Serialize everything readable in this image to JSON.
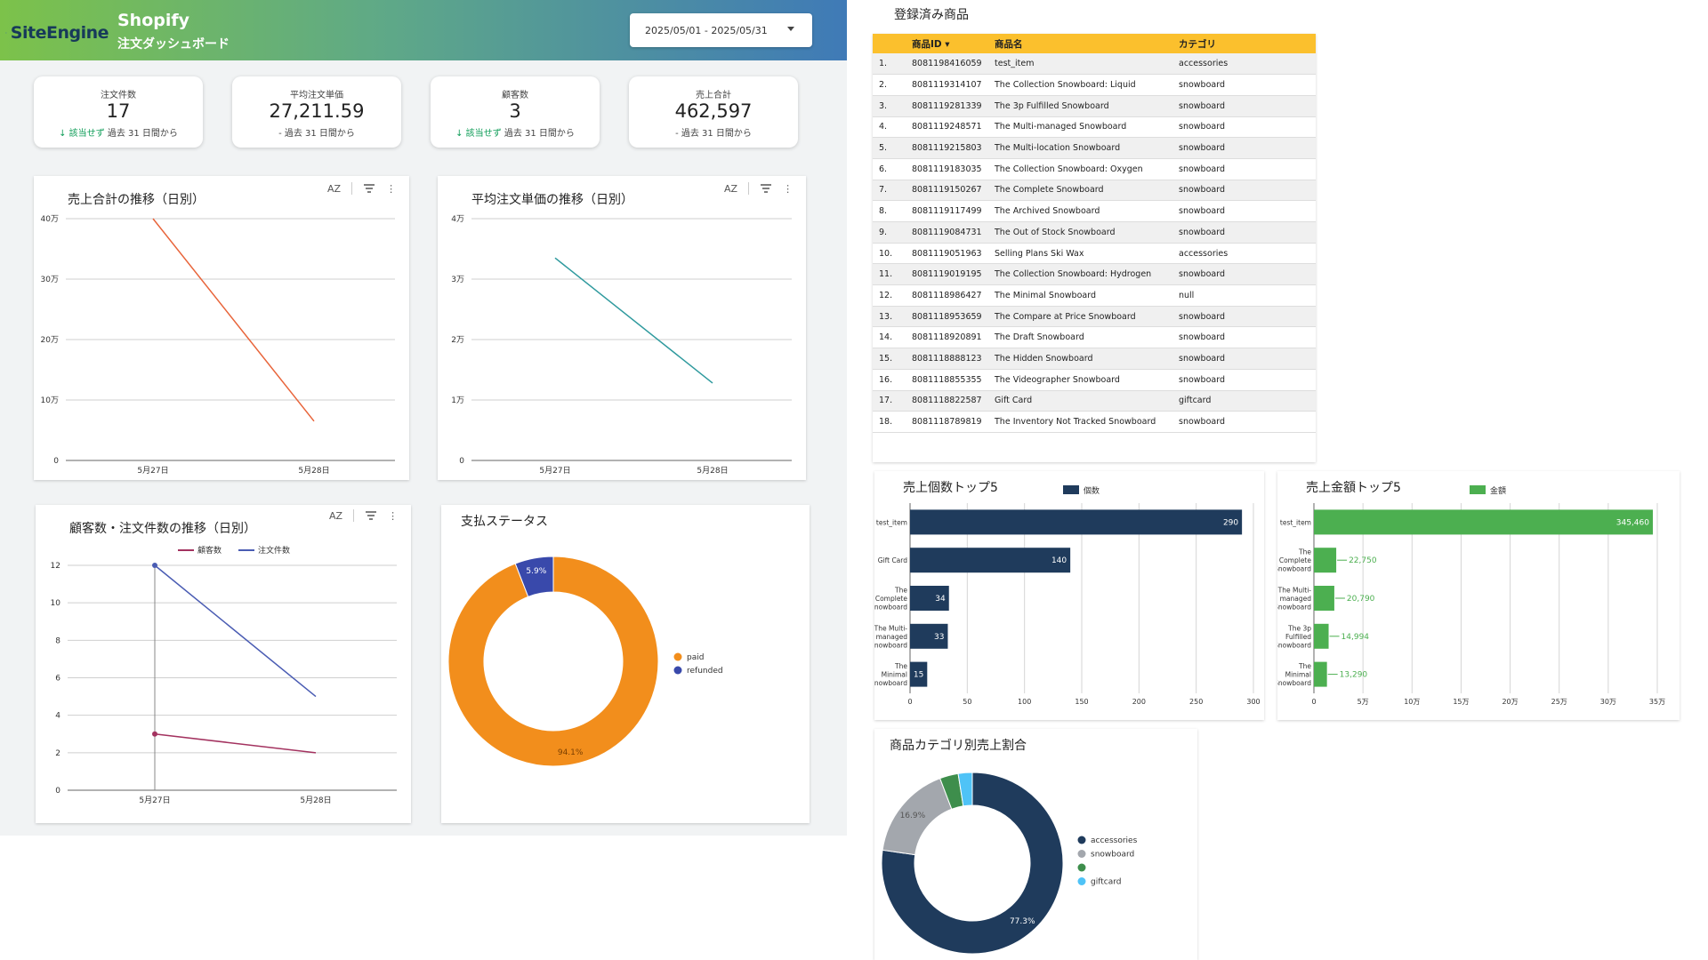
{
  "header": {
    "logo_text": "SiteEngine",
    "brand": "Shopify",
    "subtitle": "注文ダッシュボード",
    "date_range": "2025/05/01 - 2025/05/31"
  },
  "kpis": [
    {
      "label": "注文件数",
      "value": "17",
      "compare_flag": "該当せず",
      "compare_text": " 過去 31 日間から"
    },
    {
      "label": "平均注文単価",
      "value": "27,211.59",
      "compare_flag": "",
      "compare_text": "- 過去 31 日間から"
    },
    {
      "label": "顧客数",
      "value": "3",
      "compare_flag": "該当せず",
      "compare_text": " 過去 31 日間から"
    },
    {
      "label": "売上合計",
      "value": "462,597",
      "compare_flag": "",
      "compare_text": "- 過去 31 日間から"
    }
  ],
  "toolbar_icons": [
    "sort-az-icon",
    "filter-icon",
    "more-vert-icon"
  ],
  "toolbar": {
    "sort_label": "AZ",
    "more_label": "⋮"
  },
  "products_table": {
    "title": "登録済み商品",
    "headers": [
      "",
      "商品ID ▾",
      "商品名",
      "カテゴリ"
    ],
    "rows": [
      [
        "1.",
        "8081198416059",
        "test_item",
        "accessories"
      ],
      [
        "2.",
        "8081119314107",
        "The Collection Snowboard: Liquid",
        "snowboard"
      ],
      [
        "3.",
        "8081119281339",
        "The 3p Fulfilled Snowboard",
        "snowboard"
      ],
      [
        "4.",
        "8081119248571",
        "The Multi-managed Snowboard",
        "snowboard"
      ],
      [
        "5.",
        "8081119215803",
        "The Multi-location Snowboard",
        "snowboard"
      ],
      [
        "6.",
        "8081119183035",
        "The Collection Snowboard: Oxygen",
        "snowboard"
      ],
      [
        "7.",
        "8081119150267",
        "The Complete Snowboard",
        "snowboard"
      ],
      [
        "8.",
        "8081119117499",
        "The Archived Snowboard",
        "snowboard"
      ],
      [
        "9.",
        "8081119084731",
        "The Out of Stock Snowboard",
        "snowboard"
      ],
      [
        "10.",
        "8081119051963",
        "Selling Plans Ski Wax",
        "accessories"
      ],
      [
        "11.",
        "8081119019195",
        "The Collection Snowboard: Hydrogen",
        "snowboard"
      ],
      [
        "12.",
        "8081118986427",
        "The Minimal Snowboard",
        "null"
      ],
      [
        "13.",
        "8081118953659",
        "The Compare at Price Snowboard",
        "snowboard"
      ],
      [
        "14.",
        "8081118920891",
        "The Draft Snowboard",
        "snowboard"
      ],
      [
        "15.",
        "8081118888123",
        "The Hidden Snowboard",
        "snowboard"
      ],
      [
        "16.",
        "8081118855355",
        "The Videographer Snowboard",
        "snowboard"
      ],
      [
        "17.",
        "8081118822587",
        "Gift Card",
        "giftcard"
      ],
      [
        "18.",
        "8081118789819",
        "The Inventory Not Tracked Snowboard",
        "snowboard"
      ]
    ]
  },
  "chart_data": [
    {
      "id": "sales",
      "type": "line",
      "title": "売上合計の推移（日別）",
      "x": [
        "5月27日",
        "5月28日"
      ],
      "series": [
        {
          "values": [
            400000,
            65000
          ],
          "color": "#e8643a"
        }
      ],
      "yticks": [
        0,
        100000,
        200000,
        300000,
        400000
      ],
      "ytick_labels": [
        "0",
        "10万",
        "20万",
        "30万",
        "40万"
      ],
      "ylim": [
        0,
        400000
      ]
    },
    {
      "id": "aov",
      "type": "line",
      "title": "平均注文単価の推移（日別）",
      "x": [
        "5月27日",
        "5月28日"
      ],
      "series": [
        {
          "values": [
            33500,
            12800
          ],
          "color": "#2f9a9e"
        }
      ],
      "yticks": [
        0,
        10000,
        20000,
        30000,
        40000
      ],
      "ytick_labels": [
        "0",
        "1万",
        "2万",
        "3万",
        "4万"
      ],
      "ylim": [
        0,
        40000
      ]
    },
    {
      "id": "customers",
      "type": "line",
      "title": "顧客数・注文件数の推移（日別）",
      "x": [
        "5月27日",
        "5月28日"
      ],
      "series": [
        {
          "name": "顧客数",
          "values": [
            3,
            2
          ],
          "color": "#a3325f"
        },
        {
          "name": "注文件数",
          "values": [
            12,
            5
          ],
          "color": "#4a5cb3"
        }
      ],
      "yticks": [
        0,
        2,
        4,
        6,
        8,
        10,
        12
      ],
      "ytick_labels": [
        "0",
        "2",
        "4",
        "6",
        "8",
        "10",
        "12"
      ],
      "ylim": [
        0,
        12
      ]
    },
    {
      "id": "payment",
      "type": "pie",
      "title": "支払ステータス",
      "labels": [
        "paid",
        "refunded"
      ],
      "values": [
        94.1,
        5.9
      ],
      "value_labels": [
        "94.1%",
        "5.9%"
      ],
      "colors": [
        "#f28e1c",
        "#3949ab"
      ]
    },
    {
      "id": "top_qty",
      "type": "bar",
      "title": "売上個数トップ5",
      "legend": "個数",
      "color": "#1f3b5c",
      "categories": [
        "test_item",
        "Gift Card",
        "The Complete Snowboard",
        "The Multi-managed Snowboard",
        "The Minimal Snowboard"
      ],
      "category_lines": [
        [
          "test_item"
        ],
        [
          "Gift Card"
        ],
        [
          "The",
          "Complete",
          "Snowboard"
        ],
        [
          "The Multi-",
          "managed",
          "Snowboard"
        ],
        [
          "The",
          "Minimal",
          "Snowboard"
        ]
      ],
      "values": [
        290,
        140,
        34,
        33,
        15
      ],
      "value_labels": [
        "290",
        "140",
        "34",
        "33",
        "15"
      ],
      "xticks": [
        0,
        50,
        100,
        150,
        200,
        250,
        300
      ],
      "xtick_labels": [
        "0",
        "50",
        "100",
        "150",
        "200",
        "250",
        "300"
      ],
      "xlim": [
        0,
        300
      ]
    },
    {
      "id": "top_amount",
      "type": "bar",
      "title": "売上金額トップ5",
      "legend": "金額",
      "color": "#4caf50",
      "categories": [
        "test_item",
        "The Complete Snowboard",
        "The Multi-managed Snowboard",
        "The 3p Fulfilled Snowboard",
        "The Minimal Snowboard"
      ],
      "category_lines": [
        [
          "test_item"
        ],
        [
          "The",
          "Complete",
          "Snowboard"
        ],
        [
          "The Multi-",
          "managed",
          "Snowboard"
        ],
        [
          "The 3p",
          "Fulfilled",
          "Snowboard"
        ],
        [
          "The",
          "Minimal",
          "Snowboard"
        ]
      ],
      "values": [
        345460,
        22750,
        20790,
        14994,
        13290
      ],
      "value_labels": [
        "345,460",
        "22,750",
        "20,790",
        "14,994",
        "13,290"
      ],
      "xticks": [
        0,
        50000,
        100000,
        150000,
        200000,
        250000,
        300000,
        350000
      ],
      "xtick_labels": [
        "0",
        "5万",
        "10万",
        "15万",
        "20万",
        "25万",
        "30万",
        "35万"
      ],
      "xlim": [
        0,
        350000
      ]
    },
    {
      "id": "category_share",
      "type": "pie",
      "title": "商品カテゴリ別売上割合",
      "labels": [
        "accessories",
        "snowboard",
        "",
        "giftcard"
      ],
      "values": [
        77.3,
        16.9,
        3.3,
        2.5
      ],
      "value_labels": [
        "77.3%",
        "16.9%",
        "",
        ""
      ],
      "colors": [
        "#1f3b5c",
        "#a3a7ad",
        "#3e8e4c",
        "#4fc3f7"
      ]
    }
  ]
}
